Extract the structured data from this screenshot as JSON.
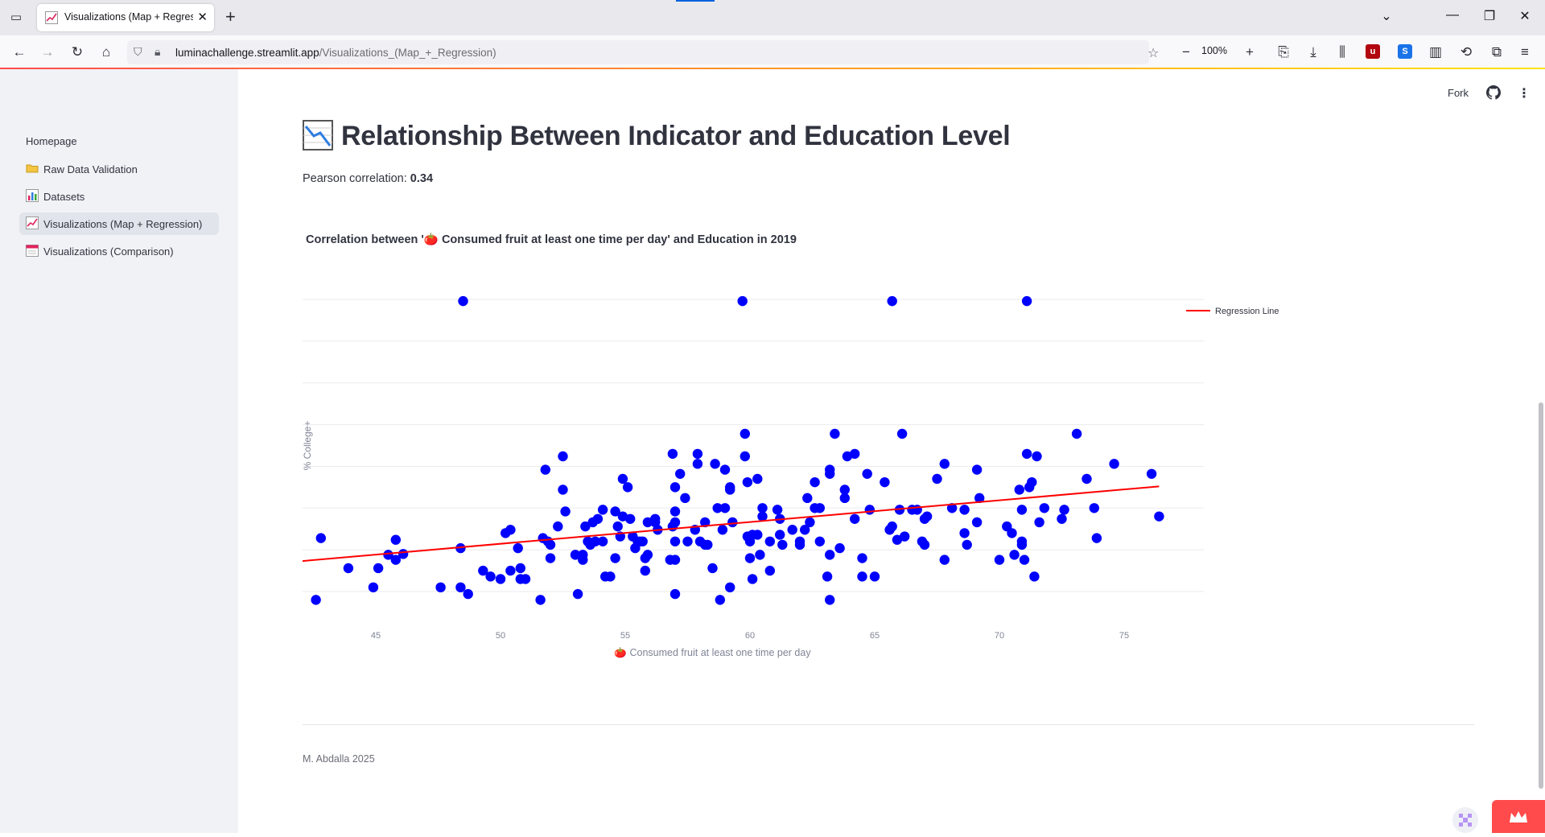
{
  "browser": {
    "tab_title": "Visualizations (Map + Regressic",
    "url_host": "luminachallenge.streamlit.app",
    "url_path": "/Visualizations_(Map_+_Regression)",
    "zoom": "100%"
  },
  "header": {
    "fork_label": "Fork"
  },
  "sidebar": {
    "home_label": "Homepage",
    "items": [
      {
        "label": "Raw Data Validation",
        "icon": "folder-icon"
      },
      {
        "label": "Datasets",
        "icon": "bar-chart-icon"
      },
      {
        "label": "Visualizations (Map + Regression)",
        "icon": "chart-increasing-icon",
        "active": true
      },
      {
        "label": "Visualizations (Comparison)",
        "icon": "calendar-icon"
      }
    ]
  },
  "main": {
    "title": "Relationship Between Indicator and Education Level",
    "pearson_label": "Pearson correlation:",
    "pearson_value": "0.34",
    "chart_title": "Correlation between '🍅 Consumed fruit at least one time per day' and Education in 2019",
    "footer": "M. Abdalla 2025"
  },
  "colors": {
    "accent": "#ff4b4b",
    "points": "#0000ff",
    "regression": "#ff0000"
  },
  "chart_data": {
    "type": "scatter",
    "xlabel": "🍅 Consumed fruit at least one time per day",
    "ylabel": "% College+",
    "xlim": [
      38.5,
      77.5
    ],
    "ylim": [
      17.5,
      56.5
    ],
    "x_ticks": [
      40,
      45,
      50,
      55,
      60,
      65,
      70,
      75
    ],
    "y_ticks": [
      20,
      25,
      30,
      35,
      40,
      45,
      50,
      55
    ],
    "legend": "top-right",
    "series": [
      {
        "name": "Regression Line",
        "type": "line",
        "x": [
          40.7,
          76.4
        ],
        "y": [
          23.3,
          32.6
        ]
      },
      {
        "type": "scatter",
        "points": [
          [
            48.5,
            54.8
          ],
          [
            59.7,
            54.8
          ],
          [
            65.7,
            54.8
          ],
          [
            71.1,
            54.8
          ],
          [
            40.7,
            19.7
          ],
          [
            42.6,
            19.0
          ],
          [
            42.8,
            26.4
          ],
          [
            43.9,
            22.8
          ],
          [
            44.9,
            20.5
          ],
          [
            45.1,
            22.8
          ],
          [
            45.5,
            24.4
          ],
          [
            45.8,
            26.2
          ],
          [
            45.8,
            23.8
          ],
          [
            46.1,
            24.5
          ],
          [
            47.6,
            20.5
          ],
          [
            48.4,
            20.5
          ],
          [
            48.4,
            25.2
          ],
          [
            48.7,
            19.7
          ],
          [
            49.3,
            22.5
          ],
          [
            49.6,
            21.8
          ],
          [
            50.0,
            21.5
          ],
          [
            50.2,
            27.0
          ],
          [
            50.4,
            27.4
          ],
          [
            50.4,
            22.5
          ],
          [
            50.7,
            25.2
          ],
          [
            50.8,
            21.5
          ],
          [
            51.0,
            21.5
          ],
          [
            50.8,
            22.8
          ],
          [
            51.6,
            19.0
          ],
          [
            51.7,
            26.4
          ],
          [
            51.8,
            34.6
          ],
          [
            51.9,
            26.0
          ],
          [
            52.0,
            24.0
          ],
          [
            52.0,
            25.6
          ],
          [
            52.3,
            27.8
          ],
          [
            52.5,
            36.2
          ],
          [
            52.5,
            32.2
          ],
          [
            52.6,
            29.6
          ],
          [
            53.0,
            24.4
          ],
          [
            53.1,
            19.7
          ],
          [
            53.3,
            24.4
          ],
          [
            53.3,
            23.8
          ],
          [
            53.4,
            27.8
          ],
          [
            53.5,
            26.0
          ],
          [
            53.6,
            25.6
          ],
          [
            53.7,
            28.3
          ],
          [
            53.8,
            26.0
          ],
          [
            53.9,
            28.7
          ],
          [
            54.1,
            29.8
          ],
          [
            54.1,
            26.0
          ],
          [
            54.2,
            21.8
          ],
          [
            54.4,
            21.8
          ],
          [
            54.6,
            29.6
          ],
          [
            54.6,
            24.0
          ],
          [
            54.7,
            27.8
          ],
          [
            54.8,
            26.6
          ],
          [
            54.9,
            33.5
          ],
          [
            54.9,
            29.0
          ],
          [
            55.1,
            32.5
          ],
          [
            55.2,
            28.7
          ],
          [
            55.3,
            26.6
          ],
          [
            55.4,
            25.2
          ],
          [
            55.5,
            26.0
          ],
          [
            55.6,
            26.0
          ],
          [
            55.7,
            26.0
          ],
          [
            55.8,
            24.0
          ],
          [
            55.8,
            22.5
          ],
          [
            55.9,
            24.4
          ],
          [
            55.9,
            28.3
          ],
          [
            56.2,
            28.3
          ],
          [
            56.2,
            28.7
          ],
          [
            56.3,
            27.4
          ],
          [
            56.8,
            23.8
          ],
          [
            56.9,
            27.8
          ],
          [
            56.9,
            36.5
          ],
          [
            57.0,
            32.5
          ],
          [
            57.0,
            29.6
          ],
          [
            57.0,
            28.3
          ],
          [
            57.0,
            26.0
          ],
          [
            57.0,
            23.8
          ],
          [
            57.0,
            19.7
          ],
          [
            57.2,
            34.1
          ],
          [
            57.4,
            31.2
          ],
          [
            57.5,
            26.0
          ],
          [
            57.8,
            27.4
          ],
          [
            57.9,
            36.5
          ],
          [
            57.9,
            35.3
          ],
          [
            58.0,
            26.0
          ],
          [
            58.2,
            28.3
          ],
          [
            58.2,
            25.6
          ],
          [
            58.3,
            25.6
          ],
          [
            58.5,
            22.8
          ],
          [
            58.6,
            35.3
          ],
          [
            58.7,
            30.0
          ],
          [
            58.8,
            19.0
          ],
          [
            58.9,
            27.4
          ],
          [
            59.0,
            34.6
          ],
          [
            59.0,
            30.0
          ],
          [
            59.2,
            32.5
          ],
          [
            59.2,
            32.2
          ],
          [
            59.2,
            20.5
          ],
          [
            59.3,
            28.3
          ],
          [
            59.8,
            38.9
          ],
          [
            59.8,
            36.2
          ],
          [
            59.9,
            33.1
          ],
          [
            59.9,
            26.6
          ],
          [
            60.0,
            26.0
          ],
          [
            60.0,
            24.0
          ],
          [
            60.1,
            26.8
          ],
          [
            60.1,
            21.5
          ],
          [
            60.3,
            33.5
          ],
          [
            60.3,
            26.8
          ],
          [
            60.4,
            24.4
          ],
          [
            60.5,
            30.0
          ],
          [
            60.5,
            29.0
          ],
          [
            60.8,
            26.0
          ],
          [
            60.8,
            22.5
          ],
          [
            61.1,
            29.8
          ],
          [
            61.2,
            28.7
          ],
          [
            61.2,
            26.8
          ],
          [
            61.3,
            25.6
          ],
          [
            61.7,
            27.4
          ],
          [
            62.0,
            26.0
          ],
          [
            62.0,
            25.6
          ],
          [
            62.2,
            27.4
          ],
          [
            62.3,
            31.2
          ],
          [
            62.4,
            28.3
          ],
          [
            62.6,
            33.1
          ],
          [
            62.6,
            30.0
          ],
          [
            62.8,
            26.0
          ],
          [
            62.8,
            30.0
          ],
          [
            63.1,
            21.8
          ],
          [
            63.2,
            34.6
          ],
          [
            63.2,
            34.1
          ],
          [
            63.2,
            24.4
          ],
          [
            63.2,
            19.0
          ],
          [
            63.4,
            38.9
          ],
          [
            63.6,
            25.2
          ],
          [
            63.8,
            32.2
          ],
          [
            63.8,
            31.2
          ],
          [
            63.9,
            36.2
          ],
          [
            64.2,
            36.5
          ],
          [
            64.2,
            28.7
          ],
          [
            64.5,
            24.0
          ],
          [
            64.5,
            21.8
          ],
          [
            64.7,
            34.1
          ],
          [
            64.8,
            29.8
          ],
          [
            65.0,
            21.8
          ],
          [
            65.4,
            33.1
          ],
          [
            65.6,
            27.4
          ],
          [
            65.7,
            27.8
          ],
          [
            65.9,
            26.2
          ],
          [
            66.0,
            29.8
          ],
          [
            66.1,
            38.9
          ],
          [
            66.2,
            26.6
          ],
          [
            66.5,
            29.8
          ],
          [
            66.7,
            29.8
          ],
          [
            66.9,
            26.0
          ],
          [
            67.0,
            28.7
          ],
          [
            67.0,
            25.6
          ],
          [
            67.1,
            29.0
          ],
          [
            67.5,
            33.5
          ],
          [
            67.8,
            35.3
          ],
          [
            67.8,
            23.8
          ],
          [
            68.1,
            30.0
          ],
          [
            68.6,
            29.8
          ],
          [
            68.6,
            27.0
          ],
          [
            68.7,
            25.6
          ],
          [
            69.1,
            34.6
          ],
          [
            69.1,
            28.3
          ],
          [
            69.2,
            31.2
          ],
          [
            70.0,
            23.8
          ],
          [
            70.3,
            27.8
          ],
          [
            70.5,
            27.0
          ],
          [
            70.6,
            24.4
          ],
          [
            70.8,
            32.2
          ],
          [
            70.9,
            29.8
          ],
          [
            70.9,
            25.6
          ],
          [
            70.9,
            26.0
          ],
          [
            71.0,
            23.8
          ],
          [
            71.1,
            36.5
          ],
          [
            71.2,
            32.5
          ],
          [
            71.3,
            33.1
          ],
          [
            71.4,
            21.8
          ],
          [
            71.5,
            36.2
          ],
          [
            71.6,
            28.3
          ],
          [
            71.8,
            30.0
          ],
          [
            72.5,
            28.7
          ],
          [
            72.6,
            29.8
          ],
          [
            73.1,
            38.9
          ],
          [
            73.5,
            33.5
          ],
          [
            73.8,
            30.0
          ],
          [
            73.9,
            26.4
          ],
          [
            74.6,
            35.3
          ],
          [
            76.1,
            34.1
          ],
          [
            76.4,
            29.0
          ]
        ]
      }
    ]
  }
}
